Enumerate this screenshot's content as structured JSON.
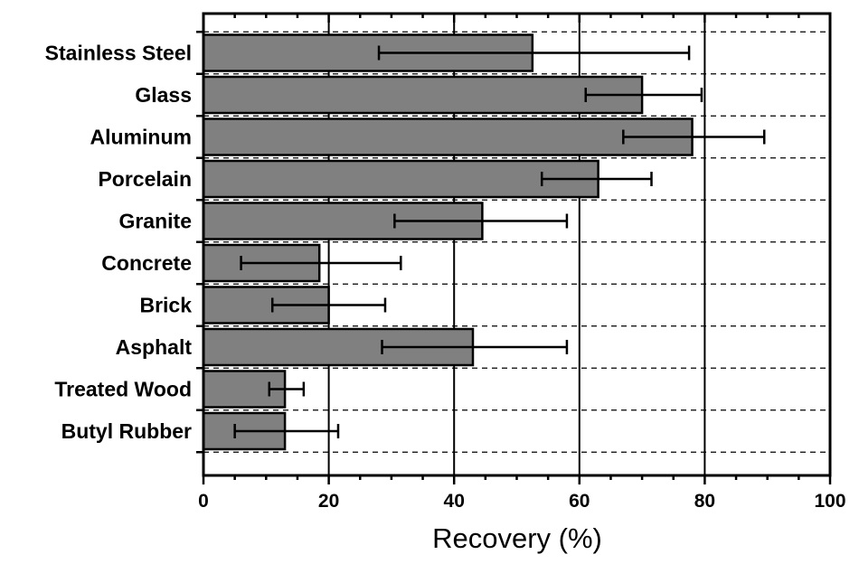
{
  "chart_data": {
    "type": "bar",
    "orientation": "horizontal",
    "title": "",
    "xlabel": "Recovery (%)",
    "ylabel": "",
    "xlim": [
      0,
      100
    ],
    "xticks": [
      0,
      20,
      40,
      60,
      80,
      100
    ],
    "xtick_labels": [
      "0",
      "20",
      "40",
      "60",
      "80",
      "100"
    ],
    "grid": "vertical solid lines at major x ticks; dashed horizontal lines between categories",
    "bar_color": "#808080",
    "categories": [
      "Stainless Steel",
      "Glass",
      "Aluminum",
      "Porcelain",
      "Granite",
      "Concrete",
      "Brick",
      "Asphalt",
      "Treated Wood",
      "Butyl Rubber"
    ],
    "values": [
      52.5,
      70,
      78,
      63,
      44.5,
      18.5,
      20,
      43,
      13,
      13
    ],
    "error_low": [
      28,
      61,
      67,
      54,
      30.5,
      6,
      11,
      28.5,
      10.5,
      5
    ],
    "error_high": [
      77.5,
      79.5,
      89.5,
      71.5,
      58,
      31.5,
      29,
      58,
      16,
      21.5
    ]
  }
}
